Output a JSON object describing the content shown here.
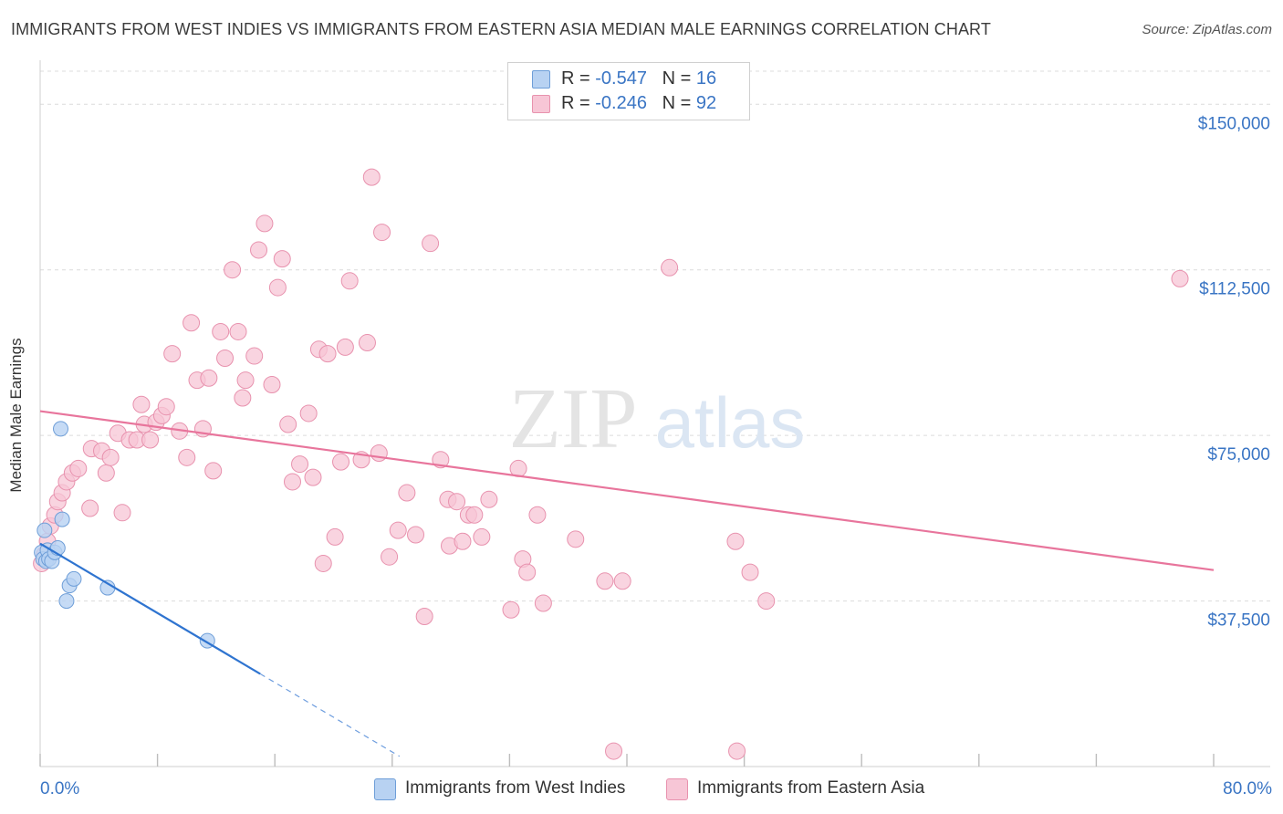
{
  "title": "IMMIGRANTS FROM WEST INDIES VS IMMIGRANTS FROM EASTERN ASIA MEDIAN MALE EARNINGS CORRELATION CHART",
  "source": "Source: ZipAtlas.com",
  "watermark": {
    "zip": "ZIP",
    "atlas": "atlas"
  },
  "legend": {
    "rows": [
      {
        "r_label": "R = ",
        "r_value": "-0.547",
        "n_label": "N = ",
        "n_value": "16"
      },
      {
        "r_label": "R = ",
        "r_value": "-0.246",
        "n_label": "N = ",
        "n_value": "92"
      }
    ]
  },
  "colors": {
    "blue_fill": "#b8d2f2",
    "blue_stroke": "#6e9ed8",
    "blue_line": "#2f74d0",
    "pink_fill": "#f7c6d6",
    "pink_stroke": "#e892ae",
    "pink_line": "#e8759c",
    "tick_label": "#3a75c4",
    "grid": "#dcdcdc"
  },
  "chart_data": {
    "type": "scatter",
    "title": "IMMIGRANTS FROM WEST INDIES VS IMMIGRANTS FROM EASTERN ASIA MEDIAN MALE EARNINGS CORRELATION CHART",
    "xlabel": "",
    "ylabel": "Median Male Earnings",
    "xlim": [
      0,
      80
    ],
    "ylim": [
      0,
      157500
    ],
    "x_tick_labels": [
      "0.0%",
      "80.0%"
    ],
    "y_ticks": [
      37500,
      75000,
      112500,
      150000
    ],
    "y_tick_labels": [
      "$37,500",
      "$75,000",
      "$112,500",
      "$150,000"
    ],
    "grid": true,
    "series": [
      {
        "name": "Immigrants from West Indies",
        "R": -0.547,
        "N": 16,
        "points": [
          [
            0.1,
            48500
          ],
          [
            0.2,
            47000
          ],
          [
            0.3,
            53500
          ],
          [
            0.4,
            46500
          ],
          [
            0.5,
            49000
          ],
          [
            0.6,
            47000
          ],
          [
            0.8,
            46500
          ],
          [
            1.0,
            48500
          ],
          [
            1.2,
            49500
          ],
          [
            1.4,
            76500
          ],
          [
            1.5,
            56000
          ],
          [
            1.8,
            37500
          ],
          [
            2.0,
            41000
          ],
          [
            2.3,
            42500
          ],
          [
            4.6,
            40500
          ],
          [
            11.4,
            28500
          ]
        ],
        "trend": {
          "x0": 0,
          "y0": 50500,
          "x1": 15,
          "y1": 21000,
          "dash_to_x": 24.5
        }
      },
      {
        "name": "Immigrants from Eastern Asia",
        "R": -0.246,
        "N": 92,
        "points": [
          [
            0.1,
            46000
          ],
          [
            0.3,
            48000
          ],
          [
            0.5,
            51000
          ],
          [
            0.7,
            54500
          ],
          [
            1.0,
            57000
          ],
          [
            1.2,
            60000
          ],
          [
            1.5,
            62000
          ],
          [
            1.8,
            64500
          ],
          [
            2.2,
            66500
          ],
          [
            2.6,
            67500
          ],
          [
            3.4,
            58500
          ],
          [
            3.5,
            72000
          ],
          [
            4.2,
            71500
          ],
          [
            4.5,
            66500
          ],
          [
            4.8,
            70000
          ],
          [
            5.3,
            75500
          ],
          [
            5.6,
            57500
          ],
          [
            6.1,
            74000
          ],
          [
            6.6,
            74000
          ],
          [
            6.9,
            82000
          ],
          [
            7.1,
            77500
          ],
          [
            7.5,
            74000
          ],
          [
            7.9,
            78000
          ],
          [
            8.3,
            79500
          ],
          [
            8.6,
            81500
          ],
          [
            9.5,
            76000
          ],
          [
            9.0,
            93500
          ],
          [
            10.0,
            70000
          ],
          [
            10.3,
            100500
          ],
          [
            10.7,
            87500
          ],
          [
            11.1,
            76500
          ],
          [
            11.5,
            88000
          ],
          [
            11.8,
            67000
          ],
          [
            12.3,
            98500
          ],
          [
            12.6,
            92500
          ],
          [
            13.1,
            112500
          ],
          [
            13.5,
            98500
          ],
          [
            13.8,
            83500
          ],
          [
            14.0,
            87500
          ],
          [
            14.6,
            93000
          ],
          [
            14.9,
            117000
          ],
          [
            15.3,
            123000
          ],
          [
            15.8,
            86500
          ],
          [
            16.2,
            108500
          ],
          [
            16.5,
            115000
          ],
          [
            16.9,
            77500
          ],
          [
            17.2,
            64500
          ],
          [
            17.7,
            68500
          ],
          [
            18.3,
            80000
          ],
          [
            18.6,
            65500
          ],
          [
            19.0,
            94500
          ],
          [
            19.3,
            46000
          ],
          [
            19.6,
            93500
          ],
          [
            20.1,
            52000
          ],
          [
            20.5,
            69000
          ],
          [
            20.8,
            95000
          ],
          [
            21.1,
            110000
          ],
          [
            21.9,
            69500
          ],
          [
            22.3,
            96000
          ],
          [
            22.6,
            133500
          ],
          [
            23.1,
            71000
          ],
          [
            23.3,
            121000
          ],
          [
            23.8,
            47500
          ],
          [
            24.4,
            53500
          ],
          [
            25.0,
            62000
          ],
          [
            25.6,
            52500
          ],
          [
            26.2,
            34000
          ],
          [
            26.6,
            118500
          ],
          [
            27.3,
            69500
          ],
          [
            27.8,
            60500
          ],
          [
            27.9,
            50000
          ],
          [
            28.4,
            60000
          ],
          [
            28.8,
            51000
          ],
          [
            29.2,
            57000
          ],
          [
            29.6,
            57000
          ],
          [
            30.1,
            52000
          ],
          [
            30.6,
            60500
          ],
          [
            32.1,
            35500
          ],
          [
            32.6,
            67500
          ],
          [
            32.9,
            47000
          ],
          [
            33.2,
            44000
          ],
          [
            33.9,
            57000
          ],
          [
            34.3,
            37000
          ],
          [
            36.5,
            51500
          ],
          [
            38.5,
            42000
          ],
          [
            39.1,
            3500
          ],
          [
            39.7,
            42000
          ],
          [
            42.9,
            113000
          ],
          [
            47.4,
            51000
          ],
          [
            47.5,
            3500
          ],
          [
            48.4,
            44000
          ],
          [
            49.5,
            37500
          ],
          [
            77.7,
            110500
          ]
        ],
        "trend": {
          "x0": 0,
          "y0": 80500,
          "x1": 80,
          "y1": 44500
        }
      }
    ]
  },
  "bottom_legend": {
    "blue_label": "Immigrants from West Indies",
    "pink_label": "Immigrants from Eastern Asia"
  }
}
